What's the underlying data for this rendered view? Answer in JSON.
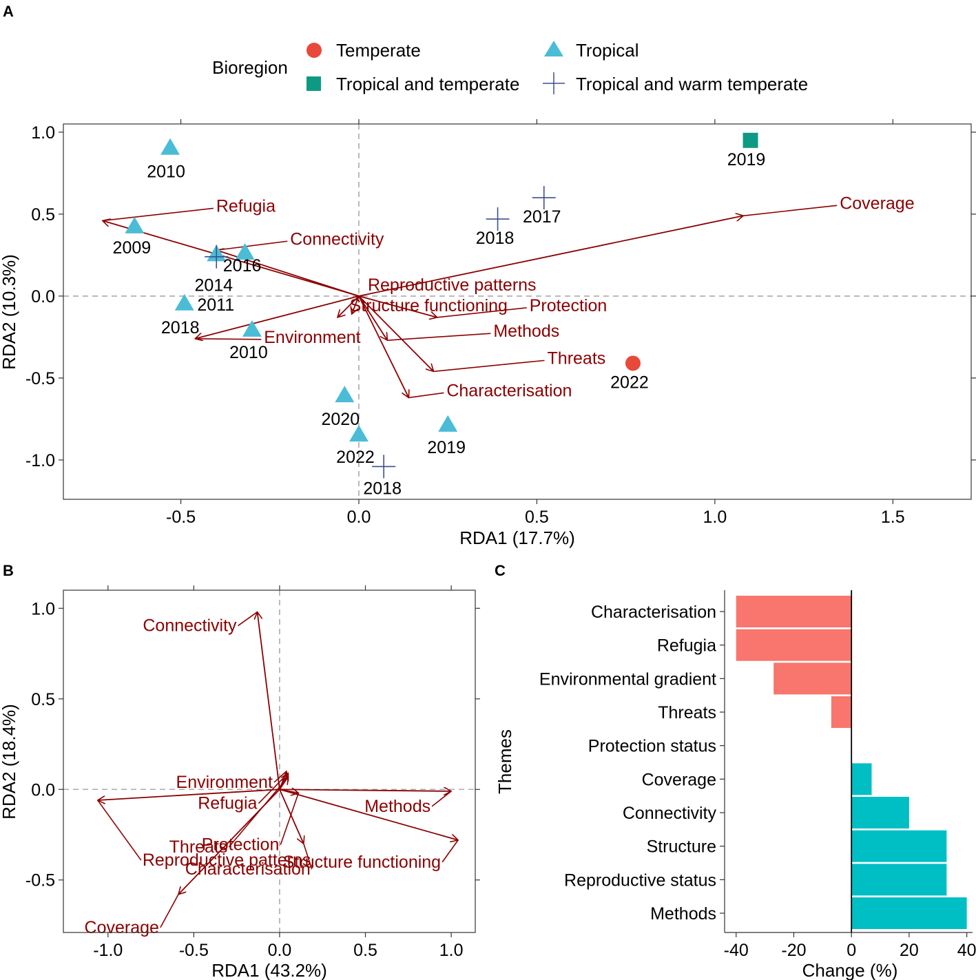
{
  "panel_labels": {
    "a": "A",
    "b": "B",
    "c": "C"
  },
  "legend": {
    "title": "Bioregion",
    "items": [
      {
        "label": "Temperate",
        "shape": "circle",
        "color": "#e8493a"
      },
      {
        "label": "Tropical",
        "shape": "triangle",
        "color": "#4bbcd6"
      },
      {
        "label": "Tropical and temperate",
        "shape": "square",
        "color": "#0e9a82"
      },
      {
        "label": "Tropical and warm temperate",
        "shape": "cross",
        "color": "#3b4f8f"
      }
    ]
  },
  "colors": {
    "vector": "#8b0000",
    "negative": "#f8766d",
    "positive": "#00bfc4"
  },
  "chart_data": [
    {
      "id": "A",
      "type": "scatter",
      "xlabel": "RDA1 (17.7%)",
      "ylabel": "RDA2 (10.3%)",
      "xlim": [
        -0.83,
        1.72
      ],
      "ylim": [
        -1.24,
        1.05
      ],
      "xticks": [
        "-0.5",
        "0.0",
        "0.5",
        "1.0",
        "1.5"
      ],
      "xtick_values": [
        -0.5,
        0,
        0.5,
        1,
        1.5
      ],
      "yticks": [
        "1.0",
        "0.5",
        "0.0",
        "-0.5",
        "-1.0"
      ],
      "ytick_values": [
        1,
        0.5,
        0,
        -0.5,
        -1
      ],
      "points": [
        {
          "x": -0.53,
          "y": 0.9,
          "label": "2010",
          "group": "Tropical"
        },
        {
          "x": -0.63,
          "y": 0.42,
          "label": "2009",
          "group": "Tropical"
        },
        {
          "x": -0.4,
          "y": 0.25,
          "label": "2014",
          "group": "Tropical"
        },
        {
          "x": -0.32,
          "y": 0.26,
          "label": "2016",
          "group": "Tropical"
        },
        {
          "x": -0.4,
          "y": 0.24,
          "label": "2011",
          "group": "Tropical and warm temperate"
        },
        {
          "x": -0.49,
          "y": -0.05,
          "label": "2018",
          "group": "Tropical"
        },
        {
          "x": -0.3,
          "y": -0.21,
          "label": "2010",
          "group": "Tropical"
        },
        {
          "x": -0.04,
          "y": -0.61,
          "label": "2020",
          "group": "Tropical"
        },
        {
          "x": 0.0,
          "y": -0.85,
          "label": "2022",
          "group": "Tropical"
        },
        {
          "x": 0.25,
          "y": -0.79,
          "label": "2019",
          "group": "Tropical"
        },
        {
          "x": 0.07,
          "y": -1.04,
          "label": "2018",
          "group": "Tropical and warm temperate"
        },
        {
          "x": 0.39,
          "y": 0.47,
          "label": "2018",
          "group": "Tropical and warm temperate"
        },
        {
          "x": 0.52,
          "y": 0.6,
          "label": "2017",
          "group": "Tropical and warm temperate"
        },
        {
          "x": 1.1,
          "y": 0.95,
          "label": "2019",
          "group": "Tropical and temperate"
        },
        {
          "x": 0.77,
          "y": -0.41,
          "label": "2022",
          "group": "Temperate"
        }
      ],
      "vectors": [
        {
          "name": "Coverage",
          "x": 1.08,
          "y": 0.49
        },
        {
          "name": "Refugia",
          "x": -0.72,
          "y": 0.46
        },
        {
          "name": "Connectivity",
          "x": -0.4,
          "y": 0.28
        },
        {
          "name": "Reproductive patterns",
          "x": -0.06,
          "y": -0.13
        },
        {
          "name": "Structure functioning",
          "x": -0.02,
          "y": -0.11
        },
        {
          "name": "Protection",
          "x": 0.22,
          "y": -0.13
        },
        {
          "name": "Methods",
          "x": 0.08,
          "y": -0.27
        },
        {
          "name": "Environment",
          "x": -0.46,
          "y": -0.26
        },
        {
          "name": "Threats",
          "x": 0.21,
          "y": -0.46
        },
        {
          "name": "Characterisation",
          "x": 0.14,
          "y": -0.62
        }
      ]
    },
    {
      "id": "B",
      "type": "scatter",
      "xlabel": "RDA1 (43.2%)",
      "ylabel": "RDA2 (18.4%)",
      "xlim": [
        -1.26,
        1.14
      ],
      "ylim": [
        -0.79,
        1.1
      ],
      "xticks": [
        "-1.0",
        "-0.5",
        "0.0",
        "0.5",
        "1.0"
      ],
      "xtick_values": [
        -1,
        -0.5,
        0,
        0.5,
        1
      ],
      "yticks": [
        "1.0",
        "0.5",
        "0.0",
        "-0.5"
      ],
      "ytick_values": [
        1,
        0.5,
        0,
        -0.5
      ],
      "vectors": [
        {
          "name": "Connectivity",
          "x": -0.13,
          "y": 0.98
        },
        {
          "name": "Environment",
          "x": 0.04,
          "y": 0.1
        },
        {
          "name": "Refugia",
          "x": 0.05,
          "y": 0.09
        },
        {
          "name": "Protection",
          "x": 0.11,
          "y": -0.02
        },
        {
          "name": "Threats",
          "x": 0.05,
          "y": 0.07
        },
        {
          "name": "Methods",
          "x": 1.0,
          "y": -0.01
        },
        {
          "name": "Structure functioning",
          "x": 1.04,
          "y": -0.28
        },
        {
          "name": "Reproductive patterns",
          "x": -1.06,
          "y": -0.06
        },
        {
          "name": "Characterisation",
          "x": 0.14,
          "y": -0.3
        },
        {
          "name": "Coverage",
          "x": -0.59,
          "y": -0.58
        }
      ]
    },
    {
      "id": "C",
      "type": "bar",
      "orientation": "horizontal",
      "xlabel": "Change (%)",
      "ylabel": "Themes",
      "xlim": [
        -44,
        42
      ],
      "xticks": [
        "-40",
        "-20",
        "0",
        "20",
        "40"
      ],
      "xtick_values": [
        -40,
        -20,
        0,
        20,
        40
      ],
      "categories": [
        "Characterisation",
        "Refugia",
        "Environmental gradient",
        "Threats",
        "Protection status",
        "Coverage",
        "Connectivity",
        "Structure",
        "Reproductive status",
        "Methods"
      ],
      "values": [
        -40,
        -40,
        -27,
        -7,
        0,
        7,
        20,
        33,
        33,
        40
      ]
    }
  ]
}
